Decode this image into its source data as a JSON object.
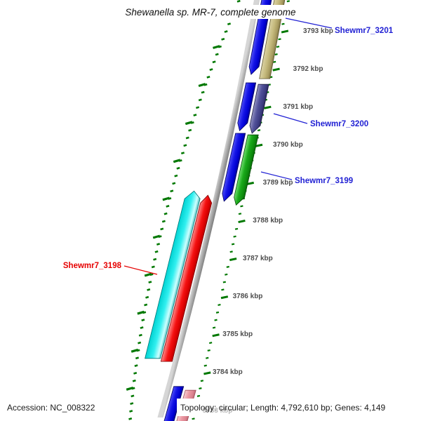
{
  "title": "Shewanella sp. MR-7, complete genome",
  "footer": {
    "accession": "Accession: NC_008322",
    "info": "Topology: circular; Length: 4,792,610 bp; Genes: 4,149"
  },
  "ruler": {
    "unit": "kbp",
    "major_interval_kbp": 1,
    "minors_per_major": 5,
    "ticks": [
      {
        "label": "3793 kbp"
      },
      {
        "label": "3792 kbp"
      },
      {
        "label": "3791 kbp"
      },
      {
        "label": "3790 kbp"
      },
      {
        "label": "3789 kbp"
      },
      {
        "label": "3788 kbp"
      },
      {
        "label": "3787 kbp"
      },
      {
        "label": "3786 kbp"
      },
      {
        "label": "3785 kbp"
      },
      {
        "label": "3784 kbp"
      },
      {
        "label": "3783 kbp",
        "faint": true
      }
    ]
  },
  "genes": [
    {
      "id": "orf-blue-3201",
      "track": "outer1",
      "kbp": [
        3791.87,
        3794.11
      ],
      "head": "down",
      "color": "blue",
      "label": null
    },
    {
      "id": "shewmr7-3201",
      "track": "outer2",
      "kbp": [
        3791.76,
        3794.11
      ],
      "head": "none",
      "color": "tan",
      "label": "Shewmr7_3201"
    },
    {
      "id": "orf-blue-3200",
      "track": "outer1",
      "kbp": [
        3790.39,
        3791.65
      ],
      "head": "down",
      "color": "blue",
      "label": null
    },
    {
      "id": "shewmr7-3200",
      "track": "outer2",
      "kbp": [
        3790.32,
        3791.61
      ],
      "head": "down",
      "color": "purple",
      "label": "Shewmr7_3200"
    },
    {
      "id": "orf-blue-3199",
      "track": "outer1",
      "kbp": [
        3788.53,
        3790.32
      ],
      "head": "down",
      "color": "blue",
      "label": null
    },
    {
      "id": "shewmr7-3199",
      "track": "outer2",
      "kbp": [
        3788.43,
        3790.28
      ],
      "head": "down",
      "color": "green",
      "label": "Shewmr7_3199"
    },
    {
      "id": "orf-red-3198",
      "track": "inner1",
      "kbp": [
        3784.31,
        3788.69
      ],
      "head": "up",
      "color": "red",
      "label": null
    },
    {
      "id": "shewmr7-3198",
      "track": "inner2",
      "kbp": [
        3784.39,
        3788.8
      ],
      "head": "up",
      "color": "cyan",
      "label": "Shewmr7_3198"
    },
    {
      "id": "orf-blue-partial",
      "track": "outer1",
      "kbp": [
        3782.4,
        3783.65
      ],
      "head": "down",
      "color": "blue",
      "label": null
    },
    {
      "id": "pink-partial",
      "track": "outer2",
      "kbp": [
        3782.4,
        3783.55
      ],
      "head": "none",
      "color": "pink",
      "label": null
    }
  ],
  "gene_labels": [
    {
      "text": "Shewmr7_3201",
      "color": "#2121D4"
    },
    {
      "text": "Shewmr7_3200",
      "color": "#2121D4"
    },
    {
      "text": "Shewmr7_3199",
      "color": "#2121D4"
    },
    {
      "text": "Shewmr7_3198",
      "color": "#E60000"
    }
  ],
  "palette": {
    "blue": {
      "stops": [
        "#5A5AF8",
        "#1414E6",
        "#0000D0",
        "#000078"
      ],
      "stroke": "#000060"
    },
    "tan": {
      "stops": [
        "#DCD4A8",
        "#C6BB7E",
        "#A89B60",
        "#6E6538"
      ],
      "stroke": "#5F5730"
    },
    "purple": {
      "stops": [
        "#9C9CC8",
        "#52529A",
        "#3C3C82",
        "#23234F"
      ],
      "stroke": "#1C1C42"
    },
    "green": {
      "stops": [
        "#7FE87F",
        "#1AAA1A",
        "#0E8C0E",
        "#066006"
      ],
      "stroke": "#054A05"
    },
    "cyan": {
      "stops": [
        "#00D2D2",
        "#30F0F0",
        "#CFFFFF",
        "#009898"
      ],
      "stroke": "#007474"
    },
    "red": {
      "stops": [
        "#FF8A8A",
        "#F51111",
        "#D60000",
        "#8E0000"
      ],
      "stroke": "#7A0000"
    },
    "pink": {
      "stops": [
        "#F7D7DB",
        "#EC99A3",
        "#DB8490",
        "#B25A66"
      ],
      "stroke": "#9E4E59"
    },
    "backbone": {
      "stops": [
        "#D6D6D6",
        "#ABABAB",
        "#8A8A8A",
        "#6E6E6E"
      ],
      "stroke": "#787878"
    },
    "tick": "#007800",
    "ruler_label_color": "#4d4d4d"
  },
  "chart_data": {
    "type": "other",
    "subtype": "circular-genome-annotation-map-segment",
    "title": "Shewanella sp. MR-7, complete genome",
    "axis": {
      "unit": "kbp",
      "visible_range": [
        3782.9,
        3794.1
      ],
      "tick_interval": 1
    },
    "features": [
      {
        "name": "Shewmr7_3201",
        "approx_span_kbp": [
          3791.76,
          3794.11
        ],
        "side": "outer",
        "color": "tan"
      },
      {
        "name": "Shewmr7_3200",
        "approx_span_kbp": [
          3790.32,
          3791.61
        ],
        "side": "outer",
        "color": "purple"
      },
      {
        "name": "Shewmr7_3199",
        "approx_span_kbp": [
          3788.43,
          3790.28
        ],
        "side": "outer",
        "color": "green"
      },
      {
        "name": "Shewmr7_3198",
        "approx_span_kbp": [
          3784.39,
          3788.8
        ],
        "side": "inner",
        "color": "cyan"
      }
    ]
  }
}
